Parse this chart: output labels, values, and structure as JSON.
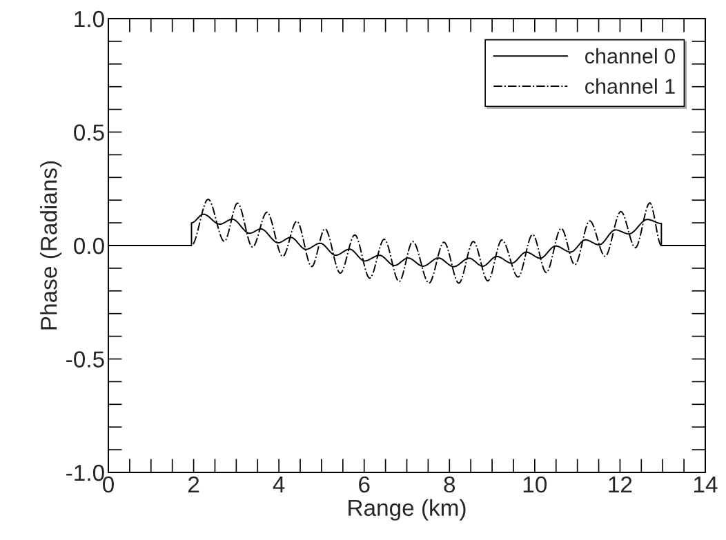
{
  "chart_data": {
    "type": "line",
    "xlabel": "Range (km)",
    "ylabel": "Phase (Radians)",
    "xlim": [
      0,
      14
    ],
    "ylim": [
      -1.0,
      1.0
    ],
    "xticks": [
      0,
      2,
      4,
      6,
      8,
      10,
      12,
      14
    ],
    "yticks": [
      {
        "value": -1.0,
        "label": "-1.0"
      },
      {
        "value": -0.5,
        "label": "-0.5"
      },
      {
        "value": 0.0,
        "label": "0.0"
      },
      {
        "value": 0.5,
        "label": "0.5"
      },
      {
        "value": 1.0,
        "label": "1.0"
      }
    ],
    "grid": false,
    "legend": "top right",
    "marker": "none",
    "series": [
      {
        "name": "channel 0",
        "color": "#000000",
        "line_style": "solid",
        "x": [
          0,
          1.95,
          1.95,
          2.23,
          2.61,
          2.91,
          3.31,
          3.58,
          3.98,
          4.28,
          4.63,
          4.97,
          5.33,
          5.66,
          6.01,
          6.36,
          6.71,
          7.03,
          7.38,
          7.74,
          8.1,
          8.46,
          8.78,
          9.11,
          9.46,
          9.8,
          10.13,
          10.49,
          10.84,
          11.19,
          11.51,
          11.89,
          12.21,
          12.64,
          12.97,
          12.97,
          14
        ],
        "values": [
          0,
          0,
          0.1,
          0.138,
          0.094,
          0.116,
          0.054,
          0.073,
          0.012,
          0.036,
          -0.017,
          0.01,
          -0.043,
          -0.016,
          -0.068,
          -0.043,
          -0.088,
          -0.055,
          -0.091,
          -0.055,
          -0.093,
          -0.056,
          -0.091,
          -0.048,
          -0.078,
          -0.029,
          -0.056,
          -0.002,
          -0.029,
          0.025,
          0.003,
          0.069,
          0.051,
          0.115,
          0.097,
          0,
          0
        ]
      },
      {
        "name": "channel 1",
        "color": "#000000",
        "line_style": "dashdot",
        "x": [
          0,
          1.95,
          2.34,
          2.72,
          3.03,
          3.38,
          3.72,
          4.09,
          4.42,
          4.77,
          5.08,
          5.44,
          5.78,
          6.13,
          6.47,
          6.82,
          7.14,
          7.52,
          7.87,
          8.22,
          8.56,
          8.9,
          9.23,
          9.61,
          9.95,
          10.27,
          10.62,
          10.94,
          11.29,
          11.65,
          12.02,
          12.36,
          12.7,
          12.97,
          14
        ],
        "values": [
          0,
          0,
          0.204,
          0.018,
          0.187,
          -0.007,
          0.147,
          -0.048,
          0.107,
          -0.093,
          0.074,
          -0.122,
          0.047,
          -0.144,
          0.028,
          -0.159,
          0.018,
          -0.166,
          0.015,
          -0.166,
          0.018,
          -0.156,
          0.025,
          -0.139,
          0.049,
          -0.119,
          0.076,
          -0.085,
          0.109,
          -0.048,
          0.15,
          -0.01,
          0.188,
          0,
          0
        ]
      }
    ]
  }
}
